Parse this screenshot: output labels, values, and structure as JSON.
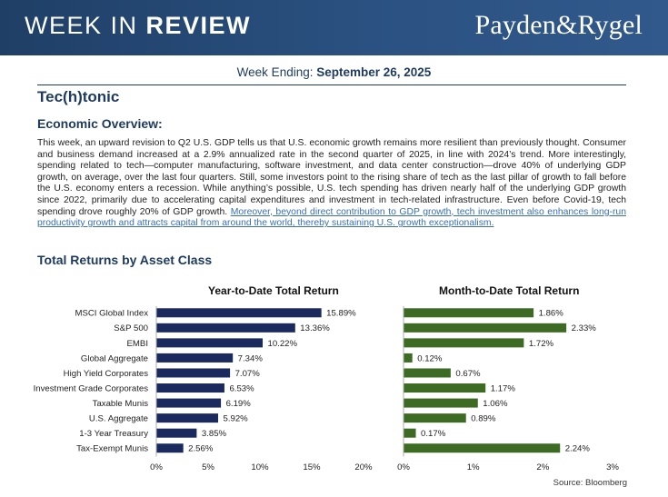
{
  "header": {
    "week_label": "WEEK IN ",
    "review_label": "REVIEW",
    "brand": "Payden&Rygel"
  },
  "week_ending": {
    "label": "Week Ending: ",
    "date": "September 26, 2025"
  },
  "article": {
    "title": "Tec(h)tonic",
    "overview_heading": "Economic Overview:",
    "body": "This week, an upward revision to Q2 U.S. GDP tells us that U.S. economic growth remains more resilient than previously thought. Consumer and business demand increased at a 2.9% annualized rate in the second quarter of 2025, in line with 2024’s trend. More interestingly, spending related to tech—computer manufacturing, software investment, and data center construction—drove 40% of underlying GDP growth, on average, over the last four quarters. Still, some investors point to the rising share of tech as the last pillar of growth to fall before the U.S. economy enters a recession. While anything’s possible, U.S. tech spending has driven nearly half of the underlying GDP growth since 2022, primarily due to accelerating capital expenditures and investment in tech-related infrastructure. Even before Covid-19, tech spending drove roughly 20% of GDP growth. ",
    "link_text": "Moreover, beyond direct contribution to GDP growth, tech investment also enhances long-run productivity growth and attracts capital from around the world, thereby sustaining U.S. growth exceptionalism."
  },
  "returns_heading": "Total Returns by Asset Class",
  "source": "Source: Bloomberg",
  "chart_data": [
    {
      "type": "bar",
      "orientation": "horizontal",
      "title": "Year-to-Date Total Return",
      "categories": [
        "MSCI Global Index",
        "S&P 500",
        "EMBI",
        "Global Aggregate",
        "High Yield Corporates",
        "Investment Grade Corporates",
        "Taxable Munis",
        "U.S. Aggregate",
        "1-3 Year Treasury",
        "Tax-Exempt Munis"
      ],
      "values": [
        15.89,
        13.36,
        10.22,
        7.34,
        7.07,
        6.53,
        6.19,
        5.92,
        3.85,
        2.56
      ],
      "value_labels": [
        "15.89%",
        "13.36%",
        "10.22%",
        "7.34%",
        "7.07%",
        "6.53%",
        "6.19%",
        "5.92%",
        "3.85%",
        "2.56%"
      ],
      "xlim": [
        0,
        20
      ],
      "ticks": [
        "0%",
        "5%",
        "10%",
        "15%",
        "20%"
      ],
      "color": "#1b2a5e"
    },
    {
      "type": "bar",
      "orientation": "horizontal",
      "title": "Month-to-Date Total Return",
      "categories": [
        "MSCI Global Index",
        "S&P 500",
        "EMBI",
        "Global Aggregate",
        "High Yield Corporates",
        "Investment Grade Corporates",
        "Taxable Munis",
        "U.S. Aggregate",
        "1-3 Year Treasury",
        "Tax-Exempt Munis"
      ],
      "values": [
        1.86,
        2.33,
        1.72,
        0.12,
        0.67,
        1.17,
        1.06,
        0.89,
        0.17,
        2.24
      ],
      "value_labels": [
        "1.86%",
        "2.33%",
        "1.72%",
        "0.12%",
        "0.67%",
        "1.17%",
        "1.06%",
        "0.89%",
        "0.17%",
        "2.24%"
      ],
      "xlim": [
        0,
        3
      ],
      "ticks": [
        "0%",
        "1%",
        "2%",
        "3%"
      ],
      "color": "#3d6b23"
    }
  ]
}
